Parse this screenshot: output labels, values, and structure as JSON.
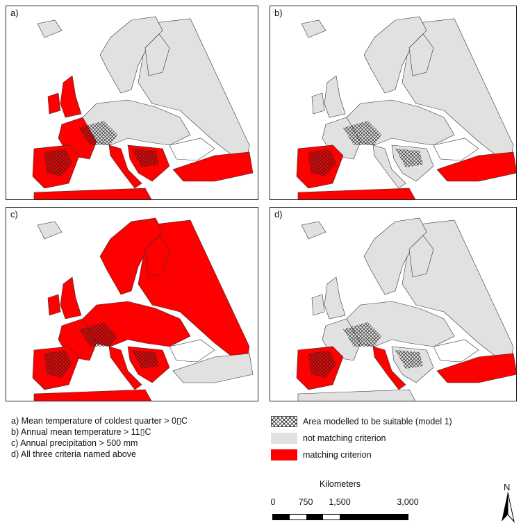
{
  "panels": [
    {
      "id": "a",
      "label": "a)"
    },
    {
      "id": "b",
      "label": "b)"
    },
    {
      "id": "c",
      "label": "c)"
    },
    {
      "id": "d",
      "label": "d)"
    }
  ],
  "criteria": [
    "a) Mean temperature of coldest quarter > 0▯C",
    "b) Annual mean temperature > 11▯C",
    "c) Annual precipitation > 500 mm",
    "d) All three criteria named above"
  ],
  "legend": {
    "suitable": "Area modelled to be suitable (model 1)",
    "not_matching": "not matching criterion",
    "matching": "matching criterion"
  },
  "scale": {
    "title": "Kilometers",
    "ticks": [
      "0",
      "750",
      "1,500",
      "3,000"
    ]
  },
  "north_label": "N",
  "colors": {
    "matching": "#ff0000",
    "not_matching": "#e1e1e1",
    "outline": "#333333"
  }
}
